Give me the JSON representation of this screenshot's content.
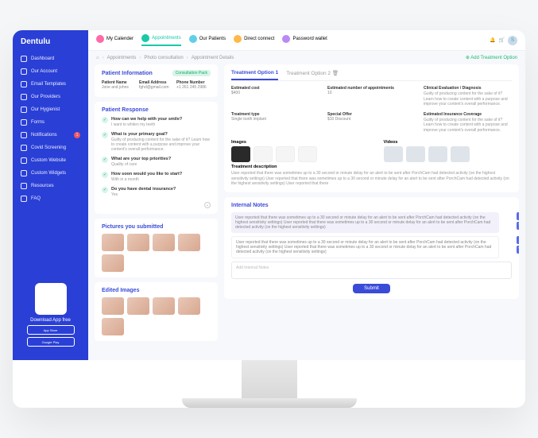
{
  "brand": "Dentulu",
  "sidebar": {
    "items": [
      {
        "label": "Dashboard"
      },
      {
        "label": "Our Account"
      },
      {
        "label": "Email Templates"
      },
      {
        "label": "Our Providers"
      },
      {
        "label": "Our Hygienist"
      },
      {
        "label": "Forms"
      },
      {
        "label": "Notifications",
        "badge": "1"
      },
      {
        "label": "Covid Screening"
      },
      {
        "label": "Custom Website"
      },
      {
        "label": "Custom Widgets"
      },
      {
        "label": "Resources"
      },
      {
        "label": "FAQ"
      }
    ],
    "download_label": "Download App free",
    "appstore": "App Store",
    "play": "Google Play"
  },
  "topbar": {
    "items": [
      {
        "label": "My Calender",
        "color": "#ff6aa8"
      },
      {
        "label": "Appointments",
        "color": "#18c9a8"
      },
      {
        "label": "Our Patients",
        "color": "#5fd0e8"
      },
      {
        "label": "Direct connect",
        "color": "#ffb84a"
      },
      {
        "label": "Password wallet",
        "color": "#b98af5"
      }
    ],
    "avatar_initial": "S"
  },
  "breadcrumb": {
    "a": "Appointments",
    "b": "Photo consultation",
    "c": "Appointment Details",
    "add": "Add Treatment Option"
  },
  "patient_info": {
    "heading": "Patient Information",
    "badge": "Consultation Pack",
    "name_label": "Patient Name",
    "name": "Jone and johns",
    "email_label": "Email Address",
    "email": "fghd@gmail.com",
    "phone_label": "Phone Number",
    "phone": "+1 261 245 2986"
  },
  "responses": {
    "heading": "Patient Response",
    "items": [
      {
        "q": "How can we help with your smile?",
        "a": "I want to whiten my teeth"
      },
      {
        "q": "What is your primary goal?",
        "a": "Guilty of producing content for the sake of it? Learn how to create content with a purpose and improve your content's overall performance."
      },
      {
        "q": "What are your top priorities?",
        "a": "Quality of care"
      },
      {
        "q": "How soon would you like to start?",
        "a": "With in a month"
      },
      {
        "q": "Do you have dental insurance?",
        "a": "Yes"
      }
    ]
  },
  "pictures_heading": "Pictures you submitted",
  "edited_heading": "Edited Images",
  "treatment": {
    "tab1": "Treatment Option 1",
    "tab2": "Treatment Option 2",
    "cost_label": "Estimated cost",
    "cost": "$400",
    "appts_label": "Estimated number of appointments",
    "appts": "10",
    "type_label": "Treatment type",
    "type": "Single tooth implant",
    "offer_label": "Special Offer",
    "offer": "$10 Discount",
    "diag_label": "Clinical Evaluation / Diagnosis",
    "diag_text": "Guilty of producing content for the sake of it? Learn how to create content with a purpose and improve your content's overall performance.",
    "cov_label": "Estimated Insurance Coverage",
    "cov_text": "Guilty of producing content for the sake of it? Learn how to create content with a purpose and improve your content's overall performance.",
    "images_label": "Images",
    "videos_label": "Videos",
    "desc_label": "Treatment description",
    "desc_text": "User reported that there was sometimes up to a 30 second or minute delay for an alert to be sent after PorchCam had detected activity (on the highest sensitivity settings) User reported that there was sometimes up to a 30 second or minute delay for an alert to be sent after PorchCam had detected activity (on the highest sensitivity settings) User reported that there"
  },
  "notes": {
    "heading": "Internal Notes",
    "n1": "User reported that there was sometimes up to a 30 second or minute delay for an alert to be sent after PorchCam had detected activity (on the highest sensitivity settings) User reported that there was sometimes up to a 30 second or minute delay for an alert to be sent after PorchCam had detected activity (on the highest sensitivity settings)",
    "n2": "User reported that there was sometimes up to a 30 second or minute delay for an alert to be sent after PorchCam had detected activity (on the highest sensitivity settings) User reported that there was sometimes up to a 30 second or minute delay for an alert to be sent after PorchCam had detected activity (on the highest sensitivity settings)",
    "placeholder": "Add Internal Notes",
    "submit": "Submit"
  }
}
